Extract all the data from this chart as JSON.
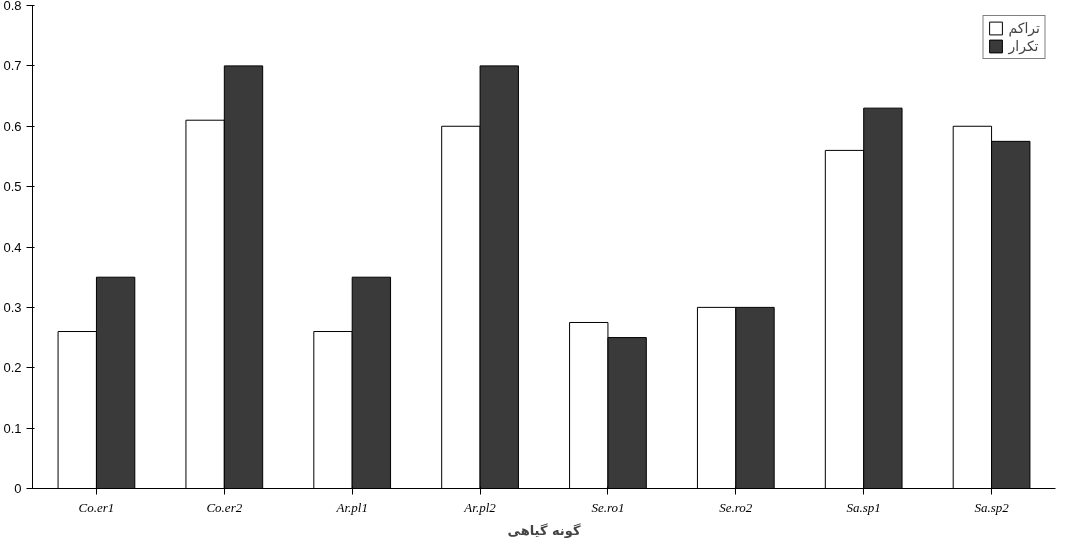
{
  "chart_data": {
    "type": "bar",
    "xlabel": "گونه گیاهی",
    "categories": [
      "Co.er1",
      "Co.er2",
      "Ar.pl1",
      "Ar.pl2",
      "Se.ro1",
      "Se.ro2",
      "Sa.sp1",
      "Sa.sp2"
    ],
    "series": [
      {
        "name": "تراکم",
        "color": "#ffffff",
        "values": [
          0.26,
          0.61,
          0.26,
          0.6,
          0.275,
          0.3,
          0.56,
          0.6
        ]
      },
      {
        "name": "تکرار",
        "color": "#3a3a3a",
        "values": [
          0.35,
          0.7,
          0.35,
          0.7,
          0.25,
          0.3,
          0.63,
          0.575
        ]
      }
    ],
    "ylim": [
      0,
      0.8
    ],
    "yticks": [
      0,
      0.1,
      0.2,
      0.3,
      0.4,
      0.5,
      0.6,
      0.7,
      0.8
    ],
    "grid": false,
    "legend": "top right"
  }
}
